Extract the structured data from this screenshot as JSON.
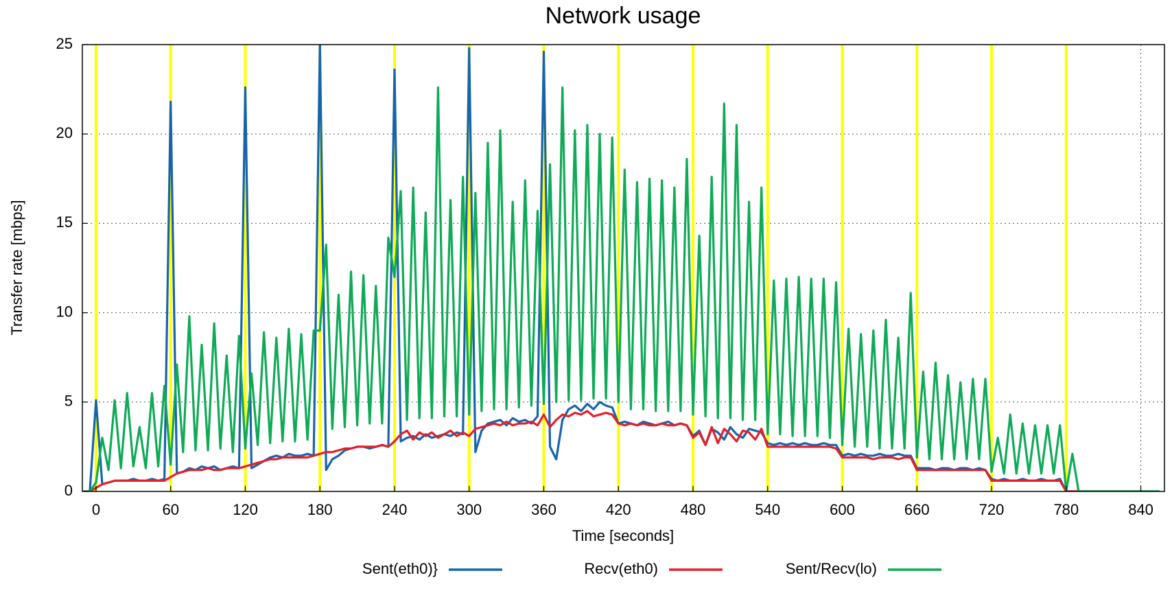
{
  "chart_data": {
    "type": "line",
    "title": "Network usage",
    "x_label": "Time [seconds]",
    "y_label": "Transfer rate [mbps]",
    "xlim": [
      -11,
      859
    ],
    "ylim": [
      0,
      25
    ],
    "xticks": [
      0,
      60,
      120,
      180,
      240,
      300,
      360,
      420,
      480,
      540,
      600,
      660,
      720,
      780,
      840
    ],
    "yticks": [
      0,
      5,
      10,
      15,
      20,
      25
    ],
    "grid": true,
    "legend": "bottom",
    "markers": {
      "color": "#ffff00",
      "x": [
        0,
        60,
        120,
        180,
        240,
        300,
        360,
        420,
        480,
        540,
        600,
        660,
        720,
        780
      ]
    },
    "x": [
      -10,
      -5,
      0,
      5,
      10,
      15,
      20,
      25,
      30,
      35,
      40,
      45,
      50,
      55,
      60,
      65,
      70,
      75,
      80,
      85,
      90,
      95,
      100,
      105,
      110,
      115,
      120,
      125,
      130,
      135,
      140,
      145,
      150,
      155,
      160,
      165,
      170,
      175,
      180,
      185,
      190,
      195,
      200,
      205,
      210,
      215,
      220,
      225,
      230,
      235,
      240,
      245,
      250,
      255,
      260,
      265,
      270,
      275,
      280,
      285,
      290,
      295,
      300,
      305,
      310,
      315,
      320,
      325,
      330,
      335,
      340,
      345,
      350,
      355,
      360,
      365,
      370,
      375,
      380,
      385,
      390,
      395,
      400,
      405,
      410,
      415,
      420,
      425,
      430,
      435,
      440,
      445,
      450,
      455,
      460,
      465,
      470,
      475,
      480,
      485,
      490,
      495,
      500,
      505,
      510,
      515,
      520,
      525,
      530,
      535,
      540,
      545,
      550,
      555,
      560,
      565,
      570,
      575,
      580,
      585,
      590,
      595,
      600,
      605,
      610,
      615,
      620,
      625,
      630,
      635,
      640,
      645,
      650,
      655,
      660,
      665,
      670,
      675,
      680,
      685,
      690,
      695,
      700,
      705,
      710,
      715,
      720,
      725,
      730,
      735,
      740,
      745,
      750,
      755,
      760,
      765,
      770,
      775,
      780,
      785,
      790,
      795,
      800,
      805,
      810,
      815,
      820,
      825,
      830,
      835,
      840,
      845,
      850,
      855
    ],
    "series": [
      {
        "name": "Sent(eth0)}",
        "color": "#1764ab",
        "values": [
          0,
          0,
          5.1,
          0.4,
          0.5,
          0.6,
          0.6,
          0.6,
          0.7,
          0.6,
          0.6,
          0.7,
          0.6,
          0.7,
          21.8,
          1.0,
          1.1,
          1.3,
          1.2,
          1.4,
          1.3,
          1.4,
          1.2,
          1.3,
          1.4,
          1.3,
          22.6,
          1.3,
          1.5,
          1.7,
          1.9,
          2.0,
          1.9,
          2.1,
          2.0,
          2.0,
          2.1,
          2.0,
          25,
          1.2,
          1.8,
          2.0,
          2.3,
          2.4,
          2.5,
          2.5,
          2.4,
          2.5,
          2.6,
          2.5,
          23.6,
          2.8,
          3.0,
          3.1,
          2.9,
          3.2,
          3.0,
          3.1,
          3.2,
          3.1,
          3.3,
          3.2,
          24.8,
          2.2,
          3.4,
          3.8,
          3.9,
          4.0,
          3.7,
          4.1,
          3.9,
          4.0,
          3.8,
          4.2,
          24.6,
          2.5,
          1.8,
          4.0,
          4.6,
          4.8,
          4.5,
          4.9,
          4.6,
          5.0,
          4.8,
          4.7,
          3.8,
          3.9,
          3.8,
          3.7,
          3.9,
          3.8,
          3.7,
          3.8,
          3.9,
          3.7,
          3.8,
          3.7,
          3.1,
          3.4,
          2.6,
          3.5,
          3.3,
          2.9,
          3.6,
          3.2,
          3.0,
          3.5,
          3.4,
          3.3,
          2.7,
          2.6,
          2.7,
          2.6,
          2.7,
          2.6,
          2.7,
          2.6,
          2.6,
          2.7,
          2.6,
          2.6,
          2.0,
          2.1,
          2.0,
          2.1,
          2.0,
          2.0,
          2.1,
          2.0,
          2.0,
          2.1,
          2.0,
          2.0,
          1.3,
          1.3,
          1.3,
          1.2,
          1.3,
          1.3,
          1.2,
          1.3,
          1.3,
          1.2,
          1.3,
          1.2,
          0.7,
          0.6,
          0.7,
          0.6,
          0.6,
          0.7,
          0.6,
          0.6,
          0.7,
          0.6,
          0.6,
          0.7,
          0,
          0,
          0,
          0,
          0,
          0,
          0,
          0,
          0,
          0,
          0,
          0,
          0,
          0,
          0,
          0
        ]
      },
      {
        "name": "Recv(eth0)",
        "color": "#e3202a",
        "values": [
          0,
          0,
          0.2,
          0.4,
          0.5,
          0.6,
          0.6,
          0.6,
          0.6,
          0.6,
          0.6,
          0.6,
          0.6,
          0.6,
          0.8,
          1.0,
          1.1,
          1.2,
          1.2,
          1.2,
          1.3,
          1.2,
          1.2,
          1.3,
          1.3,
          1.3,
          1.4,
          1.5,
          1.6,
          1.7,
          1.8,
          1.8,
          1.9,
          1.9,
          1.9,
          1.9,
          1.9,
          2.0,
          2.1,
          2.2,
          2.2,
          2.3,
          2.4,
          2.4,
          2.5,
          2.5,
          2.5,
          2.5,
          2.6,
          2.5,
          2.8,
          3.2,
          3.4,
          2.9,
          3.3,
          3.1,
          3.3,
          3.0,
          3.2,
          3.4,
          3.1,
          3.3,
          3.1,
          3.5,
          3.6,
          3.7,
          3.8,
          3.7,
          3.9,
          3.7,
          3.8,
          3.8,
          3.9,
          3.7,
          4.3,
          3.6,
          4.0,
          4.3,
          4.2,
          4.4,
          4.3,
          4.5,
          4.2,
          4.3,
          4.4,
          4.3,
          3.8,
          3.7,
          3.8,
          3.7,
          3.8,
          3.7,
          3.7,
          3.8,
          3.7,
          3.7,
          3.8,
          3.7,
          3.0,
          3.3,
          2.6,
          3.6,
          2.7,
          3.5,
          3.2,
          2.8,
          3.4,
          3.3,
          2.9,
          3.5,
          2.5,
          2.5,
          2.5,
          2.5,
          2.5,
          2.5,
          2.5,
          2.5,
          2.5,
          2.5,
          2.5,
          2.4,
          1.9,
          1.9,
          1.9,
          1.9,
          1.9,
          1.8,
          1.9,
          1.9,
          1.9,
          1.8,
          1.9,
          1.9,
          1.2,
          1.2,
          1.2,
          1.2,
          1.2,
          1.2,
          1.2,
          1.2,
          1.2,
          1.2,
          1.2,
          1.2,
          0.6,
          0.6,
          0.6,
          0.6,
          0.6,
          0.6,
          0.6,
          0.6,
          0.6,
          0.6,
          0.6,
          0.6,
          0,
          0,
          0,
          0,
          0,
          0,
          0,
          0,
          0,
          0,
          0,
          0,
          0,
          0,
          0,
          0
        ]
      },
      {
        "name": "Sent/Recv(lo)",
        "color": "#0eaa57",
        "values": [
          0,
          0,
          0.5,
          3.0,
          1.2,
          5.1,
          1.3,
          5.5,
          1.4,
          3.6,
          1.3,
          5.5,
          1.4,
          5.9,
          1.5,
          7.1,
          2.2,
          9.8,
          2.3,
          8.2,
          2.3,
          9.4,
          2.4,
          7.6,
          2.2,
          8.7,
          2.4,
          6.6,
          2.6,
          8.9,
          2.7,
          8.6,
          2.8,
          9.1,
          2.8,
          8.8,
          2.9,
          9.0,
          9,
          13.8,
          3.5,
          11.0,
          3.6,
          12.3,
          3.7,
          12.1,
          3.8,
          11.5,
          3.8,
          14.2,
          12,
          16.8,
          4.0,
          17.0,
          4.1,
          15.6,
          4.1,
          22.6,
          4.2,
          16.3,
          4.2,
          17.6,
          4.3,
          16.7,
          4.5,
          19.5,
          4.6,
          20.2,
          4.6,
          16.2,
          4.7,
          17.4,
          4.8,
          15.7,
          4.9,
          18.3,
          5.0,
          22.6,
          5.1,
          20.2,
          5.1,
          20.5,
          5.2,
          20.0,
          5.2,
          19.8,
          5.0,
          18.0,
          4.6,
          17.3,
          4.6,
          17.5,
          4.5,
          17.4,
          4.5,
          17.0,
          4.5,
          18.6,
          4.3,
          14.3,
          4.2,
          17.6,
          4.1,
          21.7,
          4.1,
          20.5,
          4.0,
          16.2,
          4.0,
          17.0,
          3.2,
          11.8,
          3.2,
          11.9,
          3.1,
          12.0,
          3.1,
          11.9,
          3.1,
          11.9,
          3.0,
          11.7,
          2.6,
          9.1,
          2.5,
          8.8,
          2.5,
          9.0,
          2.4,
          9.6,
          2.4,
          8.6,
          2.4,
          11.1,
          1.9,
          6.7,
          1.8,
          7.2,
          1.8,
          6.5,
          1.8,
          6.1,
          1.8,
          6.3,
          1.8,
          6.3,
          1.1,
          3.0,
          1.0,
          4.3,
          1.0,
          3.8,
          1.0,
          3.7,
          1.0,
          3.7,
          1.0,
          3.7,
          0,
          2.1,
          0,
          0,
          0,
          0,
          0,
          0,
          0,
          0,
          0,
          0,
          0,
          0,
          0,
          0
        ]
      }
    ]
  }
}
